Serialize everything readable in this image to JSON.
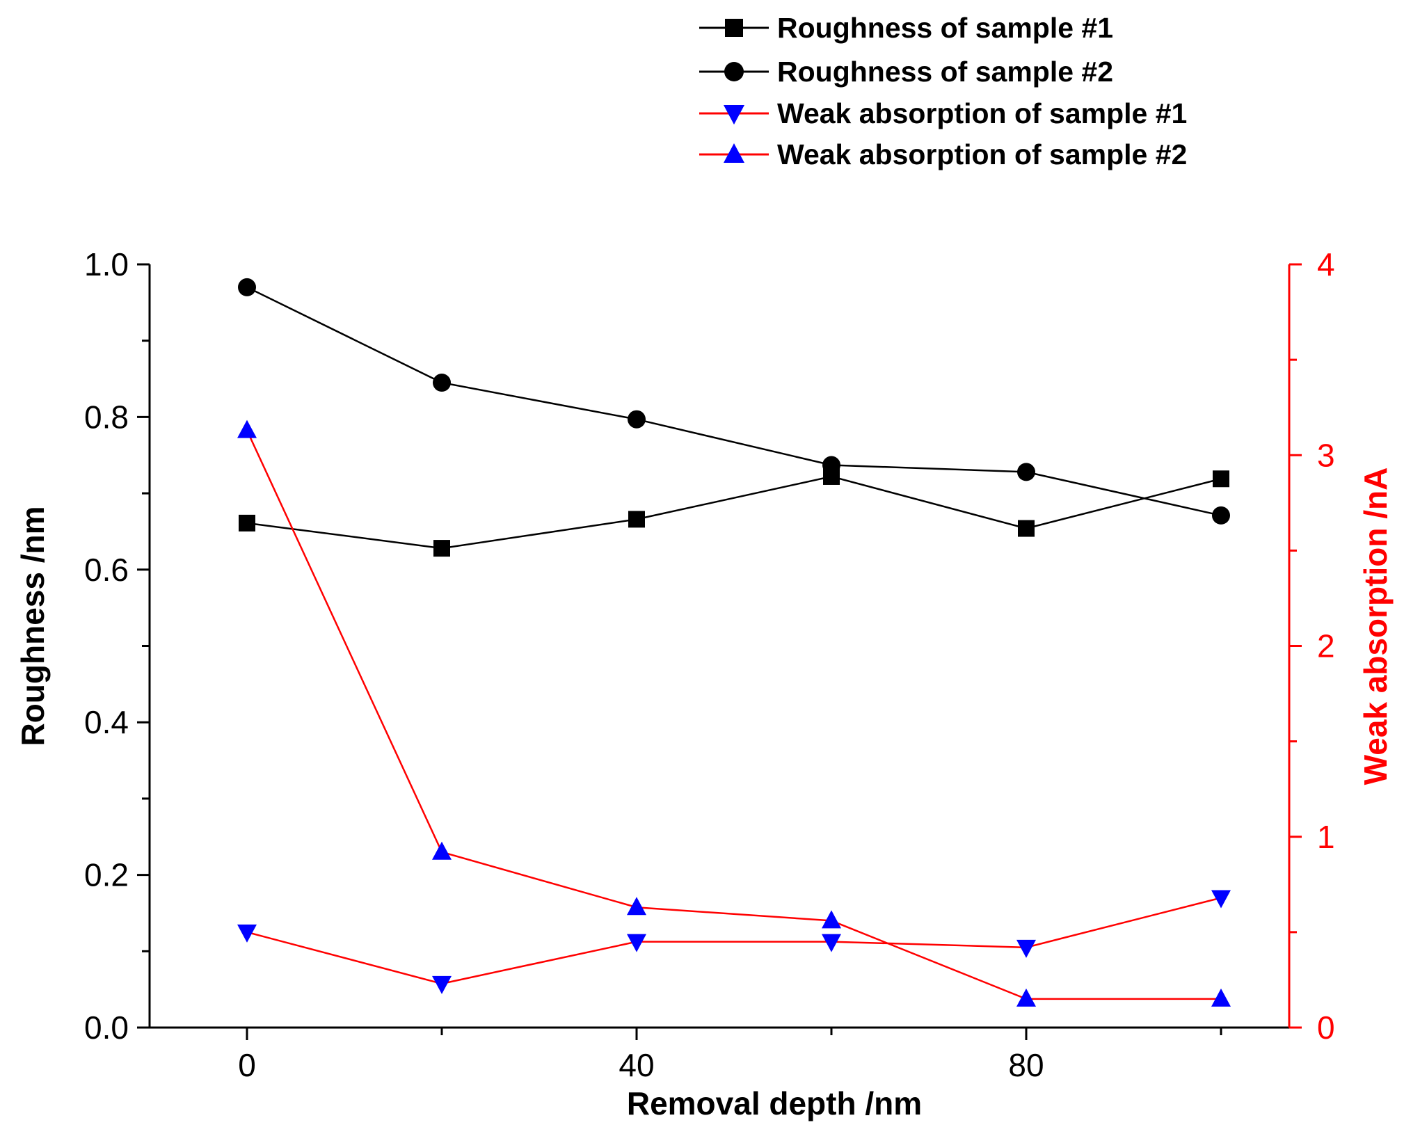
{
  "chart_data": {
    "type": "line",
    "x": [
      0,
      20,
      40,
      60,
      80,
      100
    ],
    "xlabel": "Removal depth /nm",
    "ylabel_left": "Roughness /nm",
    "ylabel_right": "Weak absorption /nA",
    "xlim": [
      -10,
      107
    ],
    "ylim_left": [
      0,
      1.0
    ],
    "ylim_right": [
      0,
      4
    ],
    "x_ticks": [
      0,
      20,
      40,
      60,
      80,
      100
    ],
    "x_tick_labels": [
      "0",
      "",
      "40",
      "",
      "80",
      ""
    ],
    "y_left_ticks": [
      0.0,
      0.2,
      0.4,
      0.6,
      0.8,
      1.0
    ],
    "y_left_tick_labels": [
      "0.0",
      "0.2",
      "0.4",
      "0.6",
      "0.8",
      "1.0"
    ],
    "y_left_minor_ticks": [
      0.1,
      0.3,
      0.5,
      0.7,
      0.9
    ],
    "y_right_ticks": [
      0,
      1,
      2,
      3,
      4
    ],
    "y_right_tick_labels": [
      "0",
      "1",
      "2",
      "3",
      "4"
    ],
    "y_right_minor_ticks": [
      0.5,
      1.5,
      2.5,
      3.5
    ],
    "grid": false,
    "legend_position": "top-right",
    "colors": {
      "black": "#000000",
      "red": "#ff0000",
      "blue": "#0000ff"
    },
    "series": [
      {
        "name": "Roughness of sample #1",
        "axis": "left",
        "marker": "square",
        "line_color": "#000000",
        "marker_color": "#000000",
        "values": [
          0.661,
          0.628,
          0.666,
          0.722,
          0.654,
          0.719
        ]
      },
      {
        "name": "Roughness of sample #2",
        "axis": "left",
        "marker": "circle",
        "line_color": "#000000",
        "marker_color": "#000000",
        "values": [
          0.97,
          0.845,
          0.797,
          0.737,
          0.728,
          0.671
        ]
      },
      {
        "name": "Weak absorption of sample #1",
        "axis": "right",
        "marker": "triangle-down",
        "line_color": "#ff0000",
        "marker_color": "#0000ff",
        "values": [
          0.5,
          0.23,
          0.45,
          0.45,
          0.42,
          0.68
        ]
      },
      {
        "name": "Weak absorption of sample #2",
        "axis": "right",
        "marker": "triangle-up",
        "line_color": "#ff0000",
        "marker_color": "#0000ff",
        "values": [
          3.13,
          0.92,
          0.63,
          0.56,
          0.15,
          0.15
        ]
      }
    ]
  }
}
